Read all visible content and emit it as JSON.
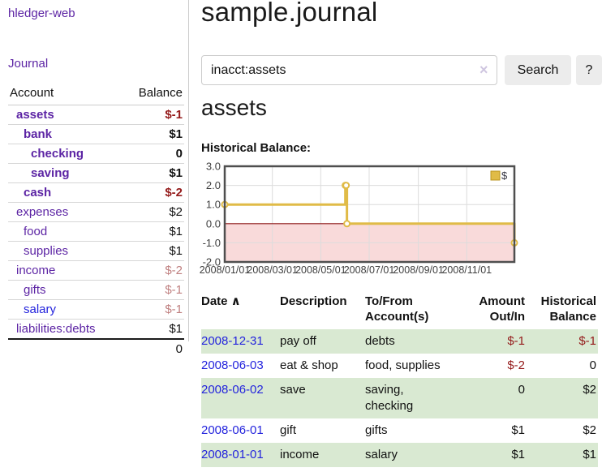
{
  "app": {
    "brand": "hledger-web"
  },
  "sidebar": {
    "journal_label": "Journal",
    "headers": {
      "account": "Account",
      "balance": "Balance"
    },
    "accounts": [
      {
        "name": "assets",
        "depth": 0,
        "bold": true,
        "link_style": "visited",
        "balance": "$-1",
        "balance_style": "neg"
      },
      {
        "name": "bank",
        "depth": 1,
        "bold": true,
        "link_style": "visited",
        "balance": "$1",
        "balance_style": ""
      },
      {
        "name": "checking",
        "depth": 2,
        "bold": true,
        "link_style": "visited",
        "balance": "0",
        "balance_style": ""
      },
      {
        "name": "saving",
        "depth": 2,
        "bold": true,
        "link_style": "visited",
        "balance": "$1",
        "balance_style": ""
      },
      {
        "name": "cash",
        "depth": 1,
        "bold": true,
        "link_style": "visited",
        "balance": "$-2",
        "balance_style": "neg"
      },
      {
        "name": "expenses",
        "depth": 0,
        "bold": false,
        "link_style": "visited",
        "balance": "$2",
        "balance_style": ""
      },
      {
        "name": "food",
        "depth": 1,
        "bold": false,
        "link_style": "visited",
        "balance": "$1",
        "balance_style": ""
      },
      {
        "name": "supplies",
        "depth": 1,
        "bold": false,
        "link_style": "visited",
        "balance": "$1",
        "balance_style": ""
      },
      {
        "name": "income",
        "depth": 0,
        "bold": false,
        "link_style": "visited",
        "balance": "$-2",
        "balance_style": "neg-soft"
      },
      {
        "name": "gifts",
        "depth": 1,
        "bold": false,
        "link_style": "visited",
        "balance": "$-1",
        "balance_style": "neg-soft"
      },
      {
        "name": "salary",
        "depth": 1,
        "bold": false,
        "link_style": "unvisited",
        "balance": "$-1",
        "balance_style": "neg-soft"
      },
      {
        "name": "liabilities:debts",
        "depth": 0,
        "bold": false,
        "link_style": "visited",
        "balance": "$1",
        "balance_style": ""
      }
    ],
    "total": "0"
  },
  "main": {
    "title": "sample.journal",
    "search": {
      "value": "inacct:assets",
      "clear_icon": "×",
      "search_button": "Search",
      "help_button": "?"
    },
    "account_heading": "assets",
    "chart_label": "Historical Balance:"
  },
  "chart_data": {
    "type": "line",
    "step": true,
    "title": "Historical Balance:",
    "series": [
      {
        "name": "$",
        "color": "#e0bb47",
        "points": [
          {
            "date": "2008-01-01",
            "day": 0,
            "value": 1
          },
          {
            "date": "2008-06-01",
            "day": 152,
            "value": 2
          },
          {
            "date": "2008-06-02",
            "day": 153,
            "value": 2
          },
          {
            "date": "2008-06-03",
            "day": 154,
            "value": 0
          },
          {
            "date": "2008-12-31",
            "day": 365,
            "value": -1
          }
        ]
      }
    ],
    "x_ticks": [
      {
        "label": "2008/01/01",
        "day": 0
      },
      {
        "label": "2008/03/01",
        "day": 60
      },
      {
        "label": "2008/05/01",
        "day": 121
      },
      {
        "label": "2008/07/01",
        "day": 182
      },
      {
        "label": "2008/09/01",
        "day": 244
      },
      {
        "label": "2008/11/01",
        "day": 305
      }
    ],
    "y_ticks": [
      3.0,
      2.0,
      1.0,
      0.0,
      -1.0,
      -2.0
    ],
    "ylim": [
      -2,
      3
    ],
    "xlim_days": [
      0,
      365
    ],
    "grid": true,
    "grid_color": "#dcdcdc",
    "negative_fill": "#f9dada",
    "zero_line_color": "#8f1a1a",
    "border_color": "#4f4f4f",
    "legend_position": "top-right",
    "legend_label": "$"
  },
  "register": {
    "sort_icon": "∧",
    "headers": [
      {
        "lines": [
          "Date"
        ],
        "align": "left",
        "sorted": true
      },
      {
        "lines": [
          "Description"
        ],
        "align": "left"
      },
      {
        "lines": [
          "To/From",
          "Account(s)"
        ],
        "align": "left"
      },
      {
        "lines": [
          "Amount",
          "Out/In"
        ],
        "align": "right"
      },
      {
        "lines": [
          "Historical",
          "Balance"
        ],
        "align": "right"
      }
    ],
    "rows": [
      {
        "date": "2008-12-31",
        "description": "pay off",
        "accounts": [
          "debts"
        ],
        "amount": "$-1",
        "amount_style": "neg",
        "balance": "$-1",
        "balance_style": "neg",
        "shaded": true
      },
      {
        "date": "2008-06-03",
        "description": "eat & shop",
        "accounts": [
          "food, supplies"
        ],
        "amount": "$-2",
        "amount_style": "neg",
        "balance": "0",
        "balance_style": "",
        "shaded": false
      },
      {
        "date": "2008-06-02",
        "description": "save",
        "accounts": [
          "saving,",
          "checking"
        ],
        "amount": "0",
        "amount_style": "",
        "balance": "$2",
        "balance_style": "",
        "shaded": true
      },
      {
        "date": "2008-06-01",
        "description": "gift",
        "accounts": [
          "gifts"
        ],
        "amount": "$1",
        "amount_style": "",
        "balance": "$2",
        "balance_style": "",
        "shaded": false
      },
      {
        "date": "2008-01-01",
        "description": "income",
        "accounts": [
          "salary"
        ],
        "amount": "$1",
        "amount_style": "",
        "balance": "$1",
        "balance_style": "",
        "shaded": true
      }
    ]
  }
}
